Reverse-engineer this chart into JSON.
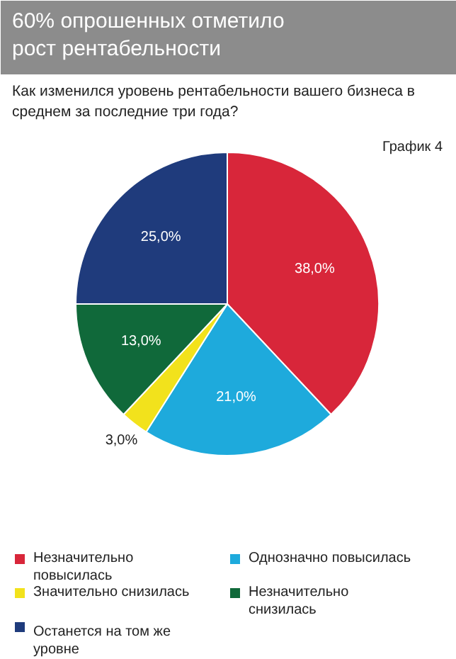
{
  "chart_data": {
    "type": "pie",
    "title": "60% опрошенных отметило рост рентабельности",
    "subtitle": "Как изменился уровень рентабельности вашего бизнеса в среднем за последние три года?",
    "annotations": [
      "График 4"
    ],
    "categories": [
      "Незначительно повысилась",
      "Однозначно повысилась",
      "Значительно снизилась",
      "Незначительно снизилась",
      "Останется на том же уровне"
    ],
    "values": [
      38,
      21,
      3,
      13,
      25
    ],
    "value_labels": [
      "38,0%",
      "21,0%",
      "3,0%",
      "13,0%",
      "25,0%"
    ],
    "colors": [
      "#d8263a",
      "#1eaadc",
      "#f2e21c",
      "#10693a",
      "#1f3b7c"
    ],
    "legend": "bottom"
  }
}
